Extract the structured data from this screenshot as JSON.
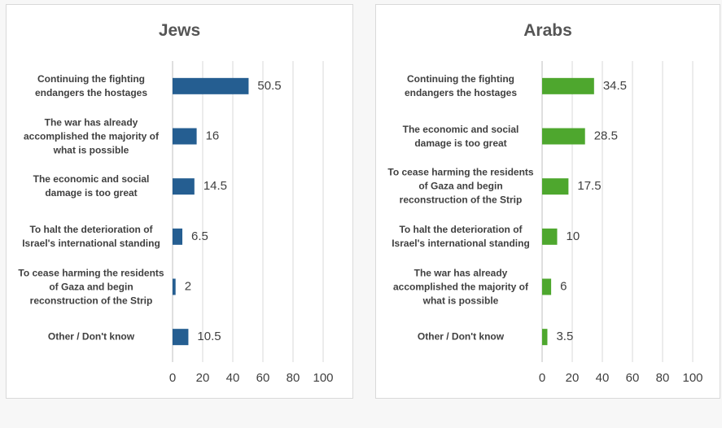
{
  "chart_data": [
    {
      "type": "bar",
      "orientation": "horizontal",
      "title": "Jews",
      "categories": [
        "Continuing the fighting endangers the hostages",
        "The war has already accomplished the majority of what is possible",
        "The economic and social damage is too great",
        "To halt the deterioration of Israel's international standing",
        "To cease harming the residents of Gaza and begin reconstruction of the Strip",
        "Other / Don't know"
      ],
      "values": [
        50.5,
        16,
        14.5,
        6.5,
        2,
        10.5
      ],
      "color": "#255e91",
      "xlim": [
        0,
        100
      ],
      "xticks": [
        0,
        20,
        40,
        60,
        80,
        100
      ],
      "grid": true
    },
    {
      "type": "bar",
      "orientation": "horizontal",
      "title": "Arabs",
      "categories": [
        "Continuing the fighting endangers the hostages",
        "The economic and social damage is too great",
        "To cease harming the residents of Gaza and begin reconstruction of the Strip",
        "To halt the deterioration of Israel's international standing",
        "The war has already accomplished the majority of what is possible",
        "Other / Don't know"
      ],
      "values": [
        34.5,
        28.5,
        17.5,
        10,
        6,
        3.5
      ],
      "color": "#4ea72e",
      "xlim": [
        0,
        100
      ],
      "xticks": [
        0,
        20,
        40,
        60,
        80,
        100
      ],
      "grid": true
    }
  ]
}
